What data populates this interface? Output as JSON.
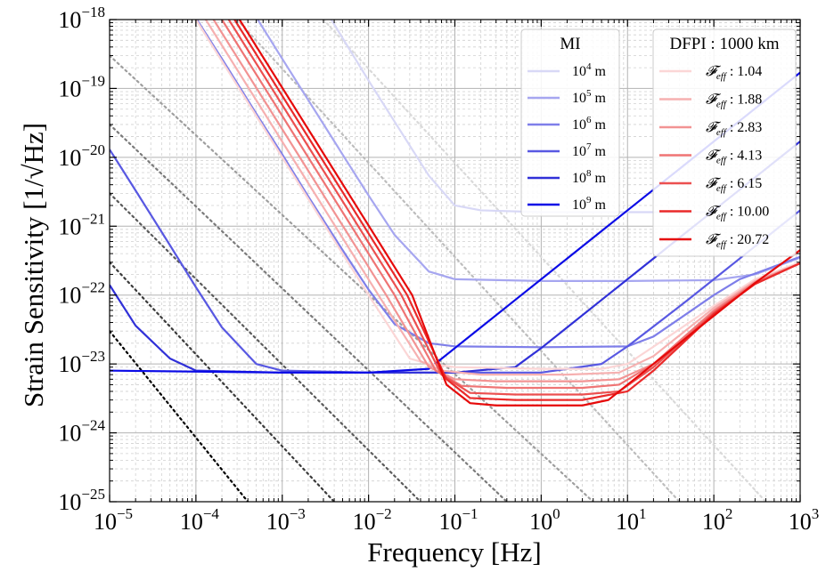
{
  "chart_data": {
    "type": "line",
    "xlabel": "Frequency [Hz]",
    "ylabel": "Strain Sensitivity [1/√Hz]",
    "x_scale": "log",
    "y_scale": "log",
    "xlim": [
      1e-05,
      1000
    ],
    "ylim": [
      1e-25,
      1e-18
    ],
    "grid": true,
    "x_ticks": [
      {
        "base": "10",
        "exp": "−5",
        "value": 1e-05
      },
      {
        "base": "10",
        "exp": "−4",
        "value": 0.0001
      },
      {
        "base": "10",
        "exp": "−3",
        "value": 0.001
      },
      {
        "base": "10",
        "exp": "−2",
        "value": 0.01
      },
      {
        "base": "10",
        "exp": "−1",
        "value": 0.1
      },
      {
        "base": "10",
        "exp": "0",
        "value": 1
      },
      {
        "base": "10",
        "exp": "1",
        "value": 10
      },
      {
        "base": "10",
        "exp": "2",
        "value": 100
      },
      {
        "base": "10",
        "exp": "3",
        "value": 1000
      }
    ],
    "y_ticks": [
      {
        "base": "10",
        "exp": "−25",
        "value": 1e-25
      },
      {
        "base": "10",
        "exp": "−24",
        "value": 1e-24
      },
      {
        "base": "10",
        "exp": "−23",
        "value": 1e-23
      },
      {
        "base": "10",
        "exp": "−22",
        "value": 1e-22
      },
      {
        "base": "10",
        "exp": "−21",
        "value": 1e-21
      },
      {
        "base": "10",
        "exp": "−20",
        "value": 1e-20
      },
      {
        "base": "10",
        "exp": "−19",
        "value": 1e-19
      },
      {
        "base": "10",
        "exp": "−18",
        "value": 1e-18
      }
    ],
    "legends": [
      {
        "title": "MI",
        "placement": "top-center",
        "entries": [
          {
            "base": "10",
            "exp": "4",
            "unit": "m",
            "color": "#d8d8f6"
          },
          {
            "base": "10",
            "exp": "5",
            "unit": "m",
            "color": "#a6a6f0"
          },
          {
            "base": "10",
            "exp": "6",
            "unit": "m",
            "color": "#7e7ee9"
          },
          {
            "base": "10",
            "exp": "7",
            "unit": "m",
            "color": "#5858e2"
          },
          {
            "base": "10",
            "exp": "8",
            "unit": "m",
            "color": "#3030d8"
          },
          {
            "base": "10",
            "exp": "9",
            "unit": "m",
            "color": "#0a0ae6"
          }
        ]
      },
      {
        "title": "DFPI : 1000 km",
        "placement": "top-right",
        "entries": [
          {
            "symbol": "𝓕",
            "sub": "eff",
            "value": "1.04",
            "color": "#fbd6d6"
          },
          {
            "symbol": "𝓕",
            "sub": "eff",
            "value": "1.88",
            "color": "#f6b0b0"
          },
          {
            "symbol": "𝓕",
            "sub": "eff",
            "value": "2.83",
            "color": "#f29393"
          },
          {
            "symbol": "𝓕",
            "sub": "eff",
            "value": "4.13",
            "color": "#ef7474"
          },
          {
            "symbol": "𝓕",
            "sub": "eff",
            "value": "6.15",
            "color": "#ec5050"
          },
          {
            "symbol": "𝓕",
            "sub": "eff",
            "value": "10.00",
            "color": "#ea2a2a"
          },
          {
            "symbol": "𝓕",
            "sub": "eff",
            "value": "20.72",
            "color": "#e60a0a"
          }
        ]
      }
    ],
    "series_mi": [
      {
        "arm_length_m": 10000.0,
        "color": "#d8d8f6",
        "points": [
          [
            0.0037,
            1e-18
          ],
          [
            0.01,
            1.3e-19
          ],
          [
            0.02,
            3.3e-20
          ],
          [
            0.05,
            5.4e-21
          ],
          [
            0.1,
            2e-21
          ],
          [
            0.2,
            1.7e-21
          ],
          [
            1,
            1.6e-21
          ],
          [
            10,
            1.6e-21
          ],
          [
            100,
            1.6e-21
          ]
        ]
      },
      {
        "arm_length_m": 100000.0,
        "color": "#a6a6f0",
        "points": [
          [
            0.00052,
            1e-18
          ],
          [
            0.001,
            2.7e-19
          ],
          [
            0.002,
            6.8e-20
          ],
          [
            0.005,
            1.1e-20
          ],
          [
            0.01,
            2.8e-21
          ],
          [
            0.02,
            7.5e-22
          ],
          [
            0.05,
            2.2e-22
          ],
          [
            0.1,
            1.7e-22
          ],
          [
            1,
            1.6e-22
          ],
          [
            10,
            1.6e-22
          ],
          [
            100,
            1.65e-22
          ],
          [
            300,
            2e-22
          ],
          [
            1000,
            3.5e-22
          ]
        ]
      },
      {
        "arm_length_m": 1000000.0,
        "color": "#7e7ee9",
        "points": [
          [
            0.0001,
            1.05e-18
          ],
          [
            0.0002,
            2.7e-19
          ],
          [
            0.0005,
            4.3e-20
          ],
          [
            0.001,
            1.1e-20
          ],
          [
            0.002,
            2.7e-21
          ],
          [
            0.005,
            4.5e-22
          ],
          [
            0.01,
            1.2e-22
          ],
          [
            0.02,
            3.8e-23
          ],
          [
            0.05,
            2e-23
          ],
          [
            0.1,
            1.8e-23
          ],
          [
            1,
            1.75e-23
          ],
          [
            10,
            1.8e-23
          ],
          [
            20,
            2.5e-23
          ],
          [
            50,
            5.5e-23
          ],
          [
            100,
            1e-22
          ],
          [
            200,
            1.7e-22
          ],
          [
            1000,
            3.6e-22
          ]
        ]
      },
      {
        "arm_length_m": 10000000.0,
        "color": "#5858e2",
        "points": [
          [
            1e-05,
            1.3e-20
          ],
          [
            2e-05,
            3.3e-21
          ],
          [
            5e-05,
            5.3e-22
          ],
          [
            0.0001,
            1.3e-22
          ],
          [
            0.0002,
            3.4e-23
          ],
          [
            0.0005,
            1e-23
          ],
          [
            0.001,
            8e-24
          ],
          [
            0.01,
            7.5e-24
          ],
          [
            0.1,
            7.5e-24
          ],
          [
            1,
            7.5e-24
          ],
          [
            5,
            1e-23
          ],
          [
            10,
            1.8e-23
          ],
          [
            20,
            3.5e-23
          ],
          [
            50,
            8.5e-23
          ],
          [
            100,
            1.7e-22
          ],
          [
            200,
            3.4e-22
          ],
          [
            500,
            8.5e-22
          ],
          [
            1000,
            1.7e-21
          ]
        ]
      },
      {
        "arm_length_m": 100000000.0,
        "color": "#3030d8",
        "points": [
          [
            1e-05,
            1.4e-22
          ],
          [
            2e-05,
            3.6e-23
          ],
          [
            5e-05,
            1.2e-23
          ],
          [
            0.0001,
            8e-24
          ],
          [
            0.001,
            7.5e-24
          ],
          [
            0.01,
            7.5e-24
          ],
          [
            0.1,
            7.5e-24
          ],
          [
            0.5,
            9e-24
          ],
          [
            1,
            1.7e-23
          ],
          [
            2,
            3.4e-23
          ],
          [
            5,
            8.5e-23
          ],
          [
            10,
            1.7e-22
          ],
          [
            50,
            8.5e-22
          ],
          [
            100,
            1.7e-21
          ],
          [
            1000,
            1.7e-20
          ]
        ]
      },
      {
        "arm_length_m": 1000000000.0,
        "color": "#0a0ae6",
        "points": [
          [
            1e-05,
            8e-24
          ],
          [
            0.001,
            7.5e-24
          ],
          [
            0.01,
            7.5e-24
          ],
          [
            0.05,
            8.5e-24
          ],
          [
            0.1,
            1.7e-23
          ],
          [
            0.2,
            3.4e-23
          ],
          [
            0.5,
            8.5e-23
          ],
          [
            1,
            1.7e-22
          ],
          [
            10,
            1.7e-21
          ],
          [
            100,
            1.7e-20
          ],
          [
            1000,
            1.7e-19
          ]
        ]
      }
    ],
    "series_dfpi": [
      {
        "finesse": "1.04",
        "color": "#fbd6d6",
        "points": [
          [
            0.0001,
            1e-18
          ],
          [
            0.001,
            1e-20
          ],
          [
            0.01,
            1e-22
          ],
          [
            0.03,
            1.2e-23
          ],
          [
            0.05,
            1e-23
          ],
          [
            0.1,
            9e-24
          ],
          [
            1,
            8.5e-24
          ],
          [
            5,
            8.5e-24
          ],
          [
            10,
            1e-23
          ],
          [
            30,
            2.5e-23
          ],
          [
            100,
            7e-23
          ],
          [
            300,
            1.7e-22
          ],
          [
            1000,
            3e-22
          ]
        ]
      },
      {
        "finesse": "1.88",
        "color": "#f6b0b0",
        "points": [
          [
            0.00013,
            1e-18
          ],
          [
            0.0013,
            1e-20
          ],
          [
            0.013,
            1e-22
          ],
          [
            0.04,
            1.1e-23
          ],
          [
            0.07,
            8e-24
          ],
          [
            0.2,
            7e-24
          ],
          [
            2,
            7e-24
          ],
          [
            8,
            7.5e-24
          ],
          [
            20,
            1.3e-23
          ],
          [
            100,
            6.5e-23
          ],
          [
            300,
            1.6e-22
          ],
          [
            1000,
            2.9e-22
          ]
        ]
      },
      {
        "finesse": "2.83",
        "color": "#f29393",
        "points": [
          [
            0.00016,
            1e-18
          ],
          [
            0.0016,
            1e-20
          ],
          [
            0.016,
            1e-22
          ],
          [
            0.05,
            9e-24
          ],
          [
            0.1,
            6e-24
          ],
          [
            0.3,
            5.6e-24
          ],
          [
            3,
            5.6e-24
          ],
          [
            8,
            6e-24
          ],
          [
            20,
            1e-23
          ],
          [
            100,
            6e-23
          ],
          [
            300,
            1.55e-22
          ],
          [
            1000,
            2.9e-22
          ]
        ]
      },
      {
        "finesse": "4.13",
        "color": "#ef7474",
        "points": [
          [
            0.0002,
            1e-18
          ],
          [
            0.002,
            1e-20
          ],
          [
            0.02,
            1e-22
          ],
          [
            0.06,
            8e-24
          ],
          [
            0.12,
            4.8e-24
          ],
          [
            0.4,
            4.5e-24
          ],
          [
            3,
            4.5e-24
          ],
          [
            8,
            5e-24
          ],
          [
            20,
            1e-23
          ],
          [
            100,
            5.8e-23
          ],
          [
            300,
            1.5e-22
          ],
          [
            1000,
            2.9e-22
          ]
        ]
      },
      {
        "finesse": "6.15",
        "color": "#ec5050",
        "points": [
          [
            0.00024,
            1e-18
          ],
          [
            0.0024,
            1e-20
          ],
          [
            0.024,
            1e-22
          ],
          [
            0.07,
            7e-24
          ],
          [
            0.15,
            3.8e-24
          ],
          [
            0.5,
            3.6e-24
          ],
          [
            3,
            3.6e-24
          ],
          [
            8,
            4e-24
          ],
          [
            20,
            9e-24
          ],
          [
            100,
            5.5e-23
          ],
          [
            300,
            1.45e-22
          ],
          [
            1000,
            2.9e-22
          ]
        ]
      },
      {
        "finesse": "10.00",
        "color": "#ea2a2a",
        "points": [
          [
            0.00028,
            1e-18
          ],
          [
            0.0028,
            1e-20
          ],
          [
            0.028,
            1e-22
          ],
          [
            0.08,
            6e-24
          ],
          [
            0.15,
            3.2e-24
          ],
          [
            0.5,
            3e-24
          ],
          [
            3,
            3e-24
          ],
          [
            10,
            4e-24
          ],
          [
            20,
            8e-24
          ],
          [
            100,
            5.3e-23
          ],
          [
            300,
            1.45e-22
          ],
          [
            1000,
            2.9e-22
          ]
        ]
      },
      {
        "finesse": "20.72",
        "color": "#e60a0a",
        "points": [
          [
            0.00032,
            1e-18
          ],
          [
            0.0032,
            1e-20
          ],
          [
            0.032,
            1e-22
          ],
          [
            0.08,
            5e-24
          ],
          [
            0.15,
            2.7e-24
          ],
          [
            0.3,
            2.5e-24
          ],
          [
            3,
            2.5e-24
          ],
          [
            6,
            3e-24
          ],
          [
            10,
            5e-24
          ],
          [
            30,
            1.5e-23
          ],
          [
            100,
            5e-23
          ],
          [
            300,
            1.5e-22
          ],
          [
            1000,
            4.5e-22
          ]
        ]
      }
    ],
    "series_reference": [
      {
        "style": "dotted",
        "color": "#d9d9d9",
        "points": [
          [
            0.003,
            1e-18
          ],
          [
            400,
            1e-25
          ]
        ]
      },
      {
        "style": "dotted",
        "color": "#bdbdbd",
        "points": [
          [
            0.0003,
            1e-18
          ],
          [
            40,
            1e-25
          ]
        ]
      },
      {
        "style": "dotted",
        "color": "#9e9e9e",
        "points": [
          [
            1e-05,
            3e-19
          ],
          [
            4,
            1e-25
          ]
        ]
      },
      {
        "style": "dotted",
        "color": "#7a7a7a",
        "points": [
          [
            1e-05,
            3e-20
          ],
          [
            0.4,
            1e-25
          ]
        ]
      },
      {
        "style": "dotted",
        "color": "#5a5a5a",
        "points": [
          [
            1e-05,
            3e-21
          ],
          [
            0.04,
            1e-25
          ]
        ]
      },
      {
        "style": "dotted",
        "color": "#3a3a3a",
        "points": [
          [
            1e-05,
            3e-22
          ],
          [
            0.004,
            1e-25
          ]
        ]
      },
      {
        "style": "dotted",
        "color": "#000000",
        "points": [
          [
            1e-05,
            3e-23
          ],
          [
            0.0004,
            1e-25
          ]
        ]
      }
    ]
  }
}
